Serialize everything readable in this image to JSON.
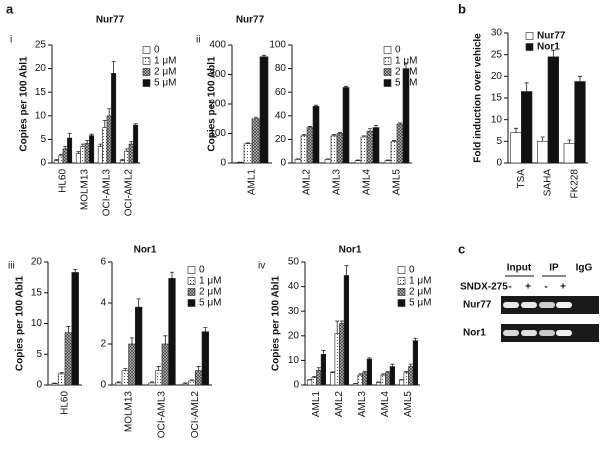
{
  "panel_labels": [
    "a",
    "i",
    "ii",
    "b",
    "iii",
    "iv",
    "c"
  ],
  "gel": {
    "headers": [
      "Input",
      "IP",
      "IgG"
    ],
    "treatment": "SNDX-275",
    "signs": [
      "-",
      "+",
      "-",
      "+"
    ],
    "rows": [
      "Nur77",
      "Nor1"
    ]
  },
  "chart_data": [
    {
      "type": "bar",
      "title": "Nur77",
      "y_label": "Copies per 100 Abl1",
      "categories": [
        "HL60",
        "MOLM13",
        "OCI-AML3",
        "OCI-AML2"
      ],
      "ylim": [
        0,
        25
      ],
      "yticks": [
        0,
        5,
        10,
        15,
        20,
        25
      ],
      "series": [
        {
          "name": "0",
          "color": "#ffffff",
          "values": [
            0.5,
            2,
            3.5,
            0.5
          ],
          "errors": [
            0.2,
            0.4,
            0.5,
            0.2
          ]
        },
        {
          "name": "1 μM",
          "color": "#ffffff",
          "pattern": "dots",
          "values": [
            1.5,
            3.5,
            7.5,
            2.5
          ],
          "errors": [
            0.3,
            0.5,
            1.5,
            0.5
          ]
        },
        {
          "name": "2 μM",
          "color": "#bbbbbb",
          "pattern": "hatch",
          "values": [
            3,
            4.2,
            10,
            4
          ],
          "errors": [
            0.5,
            0.6,
            1.5,
            0.5
          ]
        },
        {
          "name": "5 μM",
          "color": "#111111",
          "values": [
            5.3,
            5.8,
            19,
            8
          ],
          "errors": [
            1,
            0.3,
            2.5,
            0.3
          ]
        }
      ]
    },
    {
      "type": "bar",
      "title": "Nur77",
      "y_label": "Copies per 100 Abl1",
      "categories": [
        "AML1"
      ],
      "ylim": [
        0,
        400
      ],
      "yticks": [
        0,
        100,
        200,
        300,
        400
      ],
      "series": [
        {
          "color": "#ffffff",
          "values": [
            2
          ],
          "errors": [
            1
          ]
        },
        {
          "color": "#ffffff",
          "pattern": "dots",
          "values": [
            65
          ],
          "errors": [
            3
          ]
        },
        {
          "color": "#bbbbbb",
          "pattern": "hatch",
          "values": [
            150
          ],
          "errors": [
            5
          ]
        },
        {
          "color": "#111111",
          "values": [
            360
          ],
          "errors": [
            5
          ]
        }
      ]
    },
    {
      "type": "bar",
      "categories": [
        "AML2",
        "AML3",
        "AML4",
        "AML5"
      ],
      "ylim": [
        0,
        100
      ],
      "yticks": [
        0,
        20,
        40,
        60,
        80,
        100
      ],
      "series": [
        {
          "name": "0",
          "color": "#ffffff",
          "values": [
            3,
            3,
            2,
            2
          ],
          "errors": [
            0.5,
            0.5,
            0.5,
            0.5
          ]
        },
        {
          "name": "1 μM",
          "color": "#ffffff",
          "pattern": "dots",
          "values": [
            23,
            23,
            22,
            18
          ],
          "errors": [
            1,
            1,
            1,
            1
          ]
        },
        {
          "name": "2 μM",
          "color": "#bbbbbb",
          "pattern": "hatch",
          "values": [
            30,
            25,
            27,
            33
          ],
          "errors": [
            1,
            1,
            2,
            1
          ]
        },
        {
          "name": "5 μM",
          "color": "#111111",
          "values": [
            48,
            64,
            30,
            80
          ],
          "errors": [
            1,
            1,
            2,
            4
          ]
        }
      ]
    },
    {
      "type": "bar",
      "y_label": "Fold induction over vehicle",
      "categories": [
        "TSA",
        "SAHA",
        "FK228"
      ],
      "ylim": [
        0,
        30
      ],
      "yticks": [
        0,
        5,
        10,
        15,
        20,
        25,
        30
      ],
      "series": [
        {
          "name": "Nur77",
          "color": "#ffffff",
          "values": [
            7,
            5,
            4.5
          ],
          "errors": [
            1,
            1,
            0.8
          ]
        },
        {
          "name": "Nor1",
          "color": "#111111",
          "values": [
            16.5,
            24.5,
            18.8
          ],
          "errors": [
            2,
            1.5,
            1.2
          ]
        }
      ]
    },
    {
      "type": "bar",
      "title": "Nor1",
      "y_label": "Copies per 100 Abl1",
      "categories": [
        "HL60"
      ],
      "ylim": [
        0,
        20
      ],
      "yticks": [
        0,
        5,
        10,
        15,
        20
      ],
      "series": [
        {
          "color": "#ffffff",
          "values": [
            0.2
          ],
          "errors": [
            0.1
          ]
        },
        {
          "color": "#ffffff",
          "pattern": "dots",
          "values": [
            1.8
          ],
          "errors": [
            0.2
          ]
        },
        {
          "color": "#bbbbbb",
          "pattern": "hatch",
          "values": [
            8.5
          ],
          "errors": [
            1
          ]
        },
        {
          "color": "#111111",
          "values": [
            18.3
          ],
          "errors": [
            0.5
          ]
        }
      ]
    },
    {
      "type": "bar",
      "categories": [
        "MOLM13",
        "OCI-AML3",
        "OCI-AML2"
      ],
      "ylim": [
        0,
        6
      ],
      "yticks": [
        0,
        2,
        4,
        6
      ],
      "series": [
        {
          "name": "0",
          "color": "#ffffff",
          "values": [
            0.1,
            0.1,
            0.05
          ],
          "errors": [
            0.05,
            0.05,
            0.05
          ]
        },
        {
          "name": "1 μM",
          "color": "#ffffff",
          "pattern": "dots",
          "values": [
            0.7,
            0.7,
            0.2
          ],
          "errors": [
            0.1,
            0.2,
            0.05
          ]
        },
        {
          "name": "2 μM",
          "color": "#bbbbbb",
          "pattern": "hatch",
          "values": [
            2,
            2,
            0.7
          ],
          "errors": [
            0.3,
            0.4,
            0.2
          ]
        },
        {
          "name": "5 μM",
          "color": "#111111",
          "values": [
            3.8,
            5.2,
            2.6
          ],
          "errors": [
            0.4,
            0.3,
            0.2
          ]
        }
      ]
    },
    {
      "type": "bar",
      "title": "Nor1",
      "y_label": "Copies per 100 Abl1",
      "categories": [
        "AML1",
        "AML2",
        "AML3",
        "AML4",
        "AML5"
      ],
      "ylim": [
        0,
        50
      ],
      "yticks": [
        0,
        10,
        20,
        30,
        40,
        50
      ],
      "series": [
        {
          "name": "0",
          "color": "#ffffff",
          "values": [
            2,
            5,
            0.5,
            1,
            2
          ],
          "errors": [
            0.2,
            0.3,
            0.1,
            0.2,
            0.2
          ]
        },
        {
          "name": "1 μM",
          "color": "#ffffff",
          "pattern": "dots",
          "values": [
            3,
            21,
            4,
            4,
            5
          ],
          "errors": [
            0.5,
            5,
            0.5,
            0.5,
            0.5
          ]
        },
        {
          "name": "2 μM",
          "color": "#bbbbbb",
          "pattern": "hatch",
          "values": [
            6,
            25,
            5,
            5,
            7.5
          ],
          "errors": [
            1,
            1,
            0.5,
            0.5,
            1
          ]
        },
        {
          "name": "5 μM",
          "color": "#111111",
          "values": [
            12.5,
            44.5,
            10.5,
            7.5,
            18
          ],
          "errors": [
            1.5,
            4,
            0.5,
            1,
            1
          ]
        }
      ]
    }
  ]
}
